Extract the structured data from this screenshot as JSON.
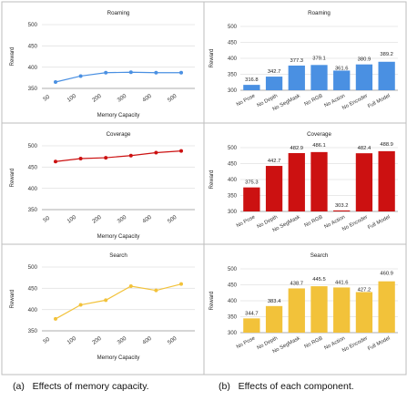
{
  "captions": {
    "left_tag": "(a)",
    "left_text": "Effects of memory capacity.",
    "right_tag": "(b)",
    "right_text": "Effects of each component."
  },
  "colors": {
    "Roaming": "#4a90e2",
    "Coverage": "#cc1111",
    "Search": "#f2c23a"
  },
  "chart_data": [
    {
      "type": "line",
      "title": "Roaming",
      "xlabel": "Memory Capacity",
      "ylabel": "Reward",
      "x": [
        50,
        100,
        200,
        300,
        400,
        500
      ],
      "values": [
        365,
        379,
        387,
        388,
        387,
        387
      ],
      "yticks": [
        350,
        400,
        450,
        500
      ],
      "ylim": [
        350,
        500
      ],
      "grid": "horizontal"
    },
    {
      "type": "bar",
      "title": "Roaming",
      "xlabel": "",
      "ylabel": "Reward",
      "categories": [
        "No Pose",
        "No Depth",
        "No SegMask",
        "No RGB",
        "No Action",
        "No Encoder",
        "Full Model"
      ],
      "values": [
        316.8,
        342.7,
        377.3,
        379.1,
        361.6,
        380.9,
        389.2
      ],
      "yticks": [
        300,
        350,
        400,
        450,
        500
      ],
      "ylim": [
        300,
        500
      ],
      "grid": "horizontal"
    },
    {
      "type": "line",
      "title": "Coverage",
      "xlabel": "Memory Capacity",
      "ylabel": "Reward",
      "x": [
        50,
        100,
        200,
        300,
        400,
        500
      ],
      "values": [
        463,
        470,
        472,
        477,
        484,
        488
      ],
      "yticks": [
        350,
        400,
        450,
        500
      ],
      "ylim": [
        350,
        500
      ],
      "grid": "horizontal"
    },
    {
      "type": "bar",
      "title": "Coverage",
      "xlabel": "",
      "ylabel": "Reward",
      "categories": [
        "No Pose",
        "No Depth",
        "No SegMask",
        "No RGB",
        "No Action",
        "No Encoder",
        "Full Model"
      ],
      "values": [
        375.3,
        442.7,
        482.9,
        486.1,
        303.2,
        482.4,
        488.9
      ],
      "yticks": [
        300,
        350,
        400,
        450,
        500
      ],
      "ylim": [
        300,
        500
      ],
      "grid": "horizontal"
    },
    {
      "type": "line",
      "title": "Search",
      "xlabel": "Memory Capacity",
      "ylabel": "Reward",
      "x": [
        50,
        100,
        200,
        300,
        400,
        500
      ],
      "values": [
        378,
        411,
        422,
        455,
        445,
        460
      ],
      "yticks": [
        350,
        400,
        450,
        500
      ],
      "ylim": [
        350,
        500
      ],
      "grid": "horizontal"
    },
    {
      "type": "bar",
      "title": "Search",
      "xlabel": "",
      "ylabel": "Reward",
      "categories": [
        "No Pose",
        "No Depth",
        "No SegMask",
        "No RGB",
        "No Action",
        "No Encoder",
        "Full Model"
      ],
      "values": [
        344.7,
        383.4,
        438.7,
        445.5,
        441.6,
        427.2,
        460.9
      ],
      "yticks": [
        300,
        350,
        400,
        450,
        500
      ],
      "ylim": [
        300,
        500
      ],
      "grid": "horizontal"
    }
  ]
}
